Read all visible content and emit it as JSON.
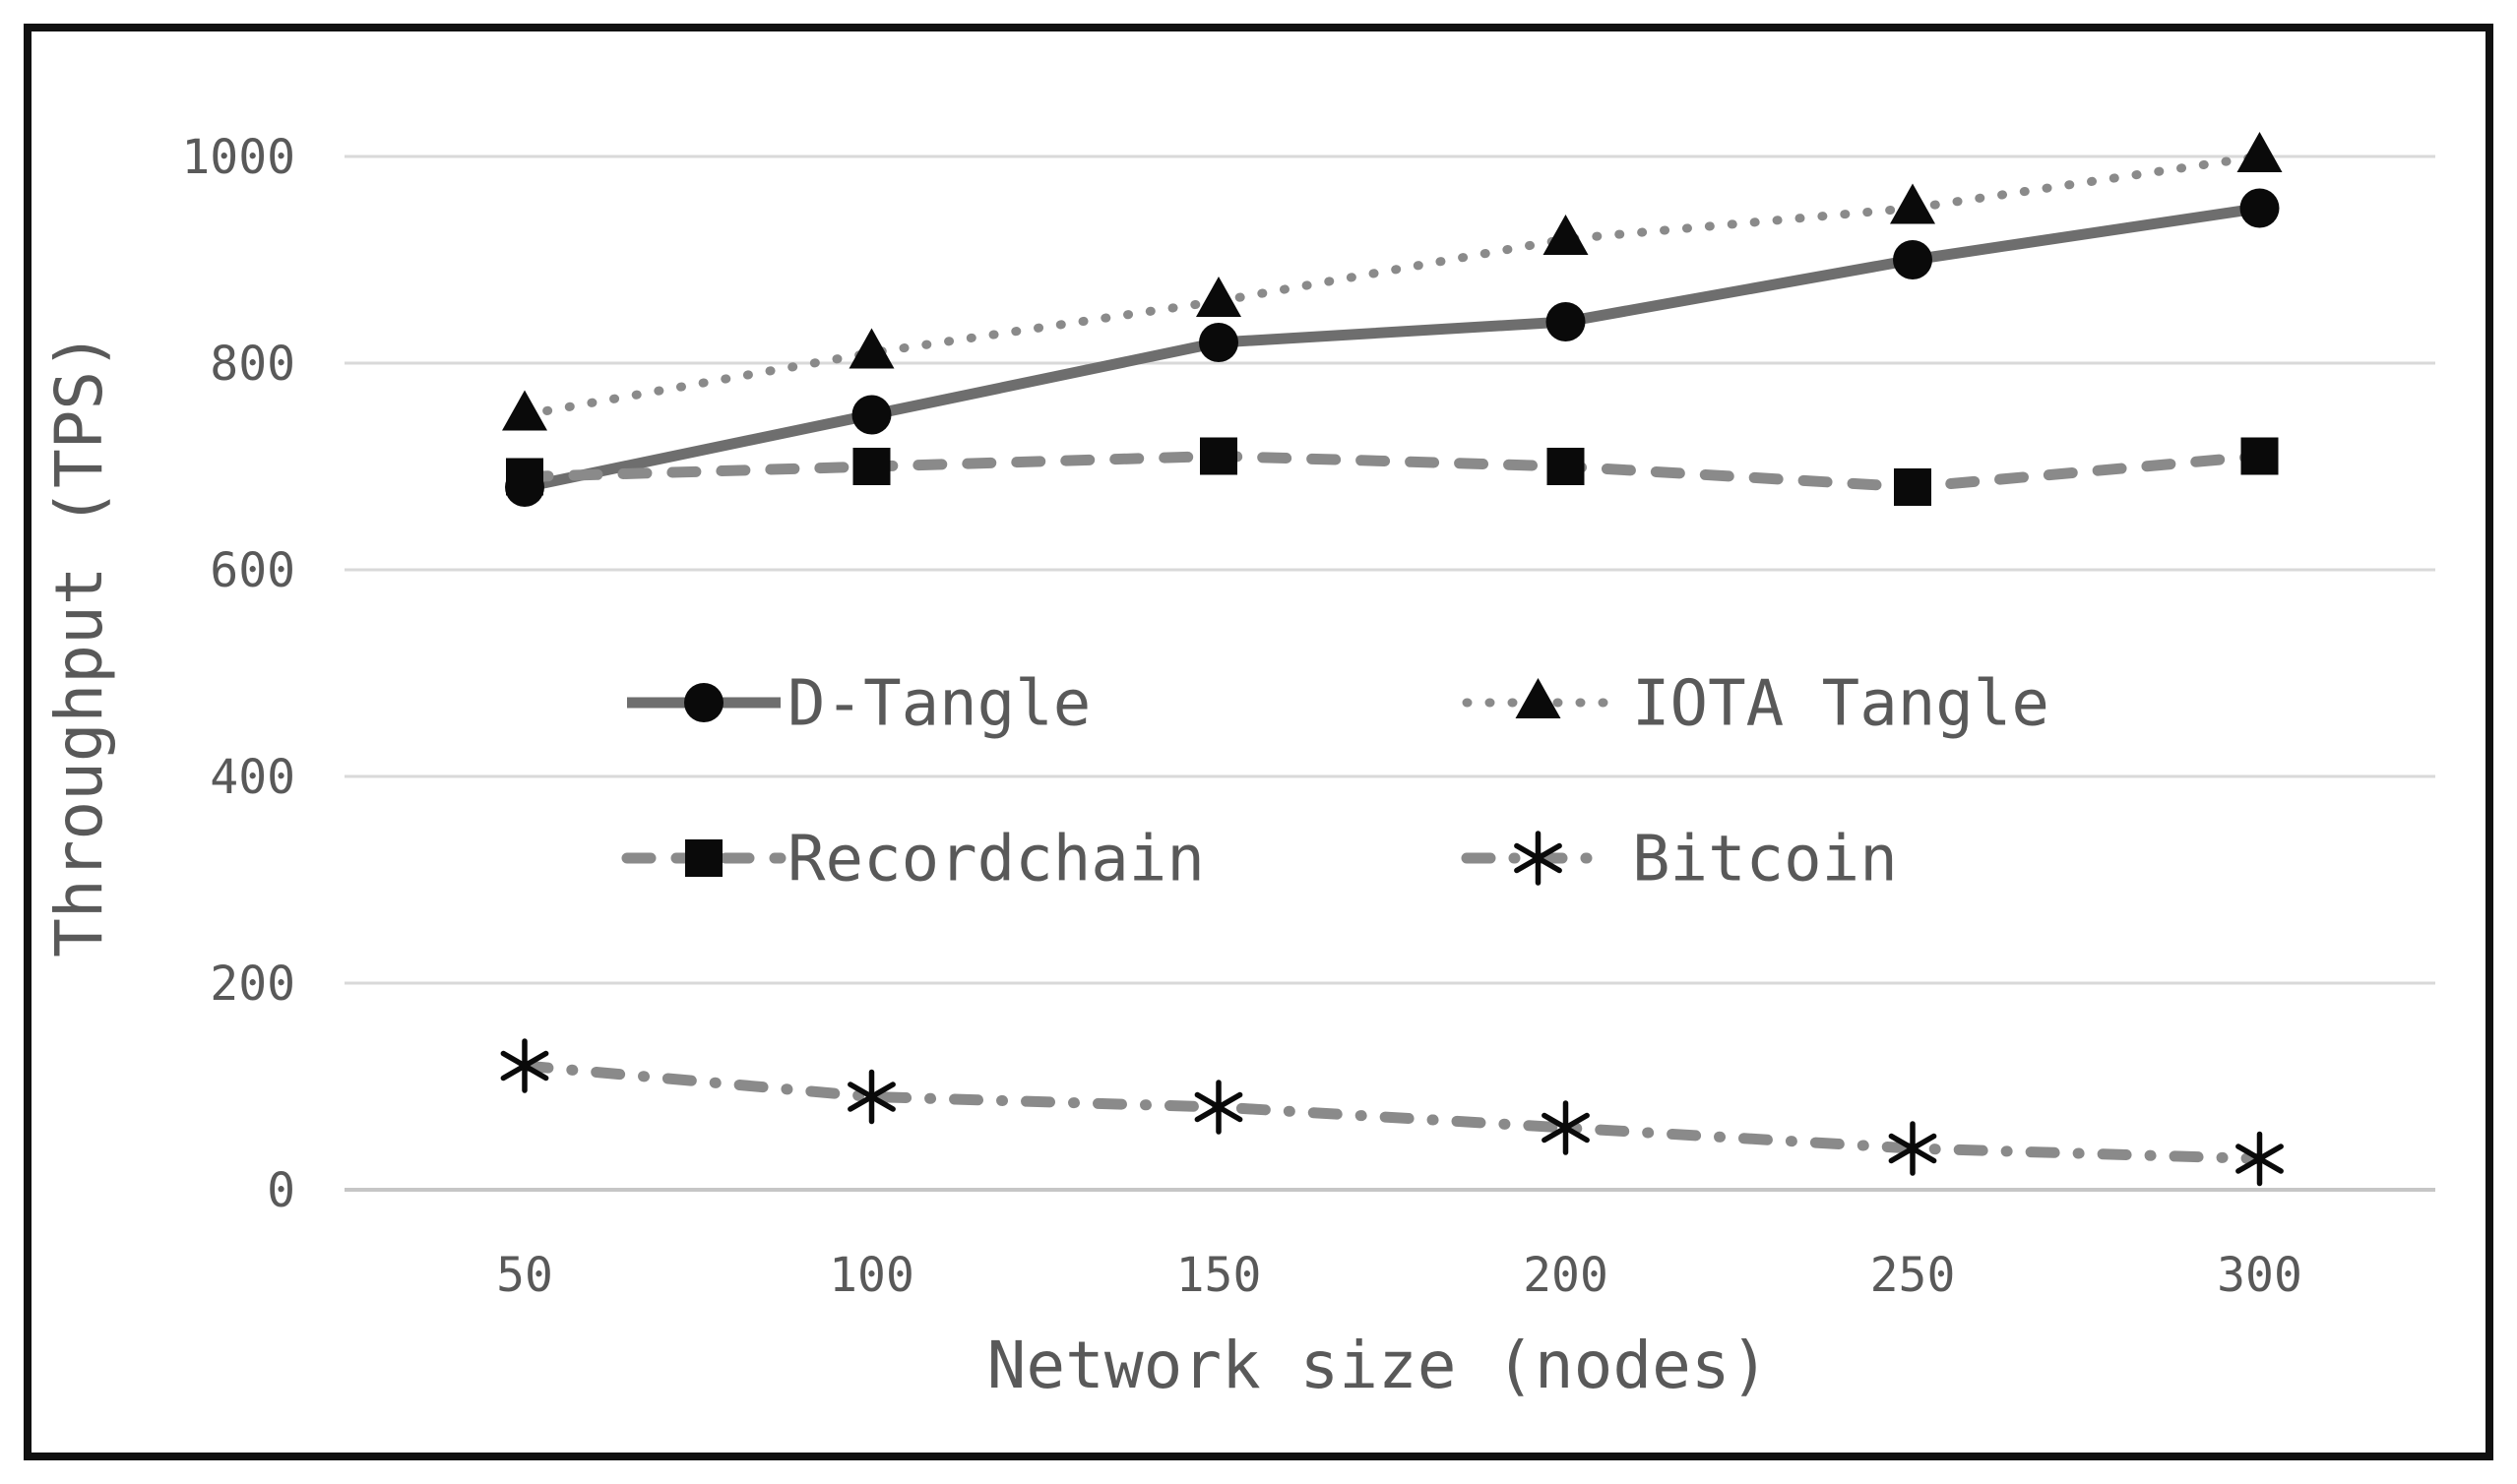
{
  "figure": {
    "background": "#ffffff",
    "border_color": "#111111",
    "gridline_color": "#d9d9d9",
    "baseline_color": "#c6c6c6",
    "axis_text_color": "#595959",
    "marker_color": "#0a0a0a"
  },
  "chart_data": {
    "type": "line",
    "title": "",
    "xlabel": "Network size (nodes)",
    "ylabel": "Throughput (TPS)",
    "x": [
      50,
      100,
      150,
      200,
      250,
      300
    ],
    "x_tick_labels": [
      "50",
      "100",
      "150",
      "200",
      "250",
      "300"
    ],
    "y_ticks": [
      0,
      200,
      400,
      600,
      800,
      1000
    ],
    "y_tick_labels": [
      "0",
      "200",
      "400",
      "600",
      "800",
      "1000"
    ],
    "ylim": [
      0,
      1000
    ],
    "grid": "horizontal",
    "legend_position": "inside-center",
    "series": [
      {
        "name": "D-Tangle",
        "marker": "circle",
        "line_style": "solid",
        "line_color": "#6e6e6e",
        "values": [
          680,
          750,
          820,
          840,
          900,
          950
        ]
      },
      {
        "name": "IOTA Tangle",
        "marker": "triangle",
        "line_style": "dotted",
        "line_color": "#8a8a8a",
        "values": [
          750,
          810,
          860,
          920,
          950,
          1000
        ]
      },
      {
        "name": "Recordchain",
        "marker": "square",
        "line_style": "dashed",
        "line_color": "#8a8a8a",
        "values": [
          690,
          700,
          710,
          700,
          680,
          710
        ]
      },
      {
        "name": "Bitcoin",
        "marker": "asterisk",
        "line_style": "dash-dot",
        "line_color": "#8a8a8a",
        "values": [
          120,
          90,
          80,
          60,
          40,
          30
        ]
      }
    ]
  }
}
